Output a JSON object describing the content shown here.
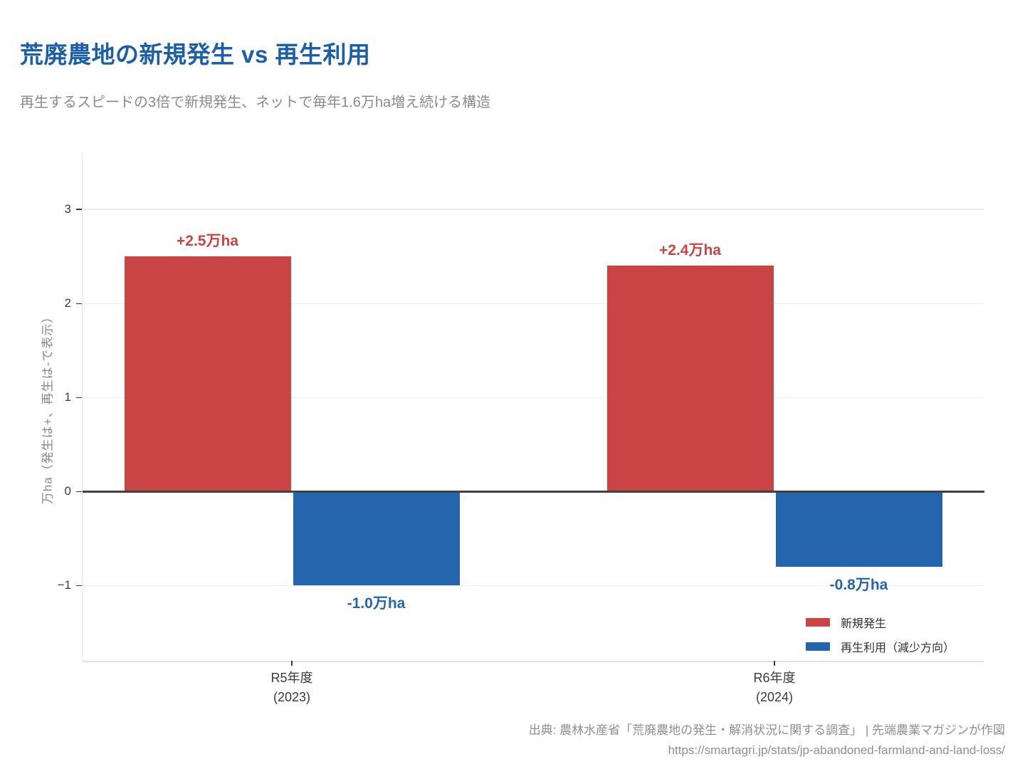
{
  "header": {
    "title": "荒廃農地の新規発生 vs 再生利用",
    "subtitle": "再生するスピードの3倍で新規発生、ネットで毎年1.6万ha増え続ける構造"
  },
  "colors": {
    "title_blue": "#1B5FA8",
    "subtitle_gray": "#8A8A8A",
    "new_occurrence_red": "#C94444",
    "reuse_blue": "#2565AE",
    "zero_line": "#404040",
    "gridline_gray": "#EBEBEB",
    "axis_spine_gray": "#E0E0E0",
    "tick_mark_gray": "#3A3A3A",
    "tick_text_gray": "#3A3A3A",
    "ylabel_gray": "#878787",
    "footer_gray": "#8F8F8F"
  },
  "chart_data": {
    "type": "bar",
    "title": "荒廃農地の新規発生 vs 再生利用",
    "subtitle": "再生するスピードの3倍で新規発生、ネットで毎年1.6万ha増え続ける構造",
    "categories": [
      {
        "label": "R5年度",
        "sublabel": "(2023)"
      },
      {
        "label": "R6年度",
        "sublabel": "(2024)"
      }
    ],
    "series": [
      {
        "name": "新規発生",
        "color_key": "new_occurrence_red",
        "values": [
          2.5,
          2.4
        ],
        "data_labels": [
          "+2.5万ha",
          "+2.4万ha"
        ]
      },
      {
        "name": "再生利用（減少方向）",
        "color_key": "reuse_blue",
        "values": [
          -1.0,
          -0.8
        ],
        "data_labels": [
          "-1.0万ha",
          "-0.8万ha"
        ]
      }
    ],
    "xlabel": "",
    "ylabel": "万ha（発生は+、再生は-で表示）",
    "yticks": [
      3,
      2,
      1,
      0,
      -1
    ],
    "ytick_labels": [
      "3",
      "2",
      "1",
      "0",
      "−1"
    ],
    "ylim": [
      -1.8,
      3.6
    ],
    "grid": "horizontal",
    "legend_position": "lower right"
  },
  "footer": {
    "source": "出典: 農林水産省「荒廃農地の発生・解消状況に関する調査」 | 先端農業マガジンが作図",
    "url": "https://smartagri.jp/stats/jp-abandoned-farmland-and-land-loss/"
  }
}
